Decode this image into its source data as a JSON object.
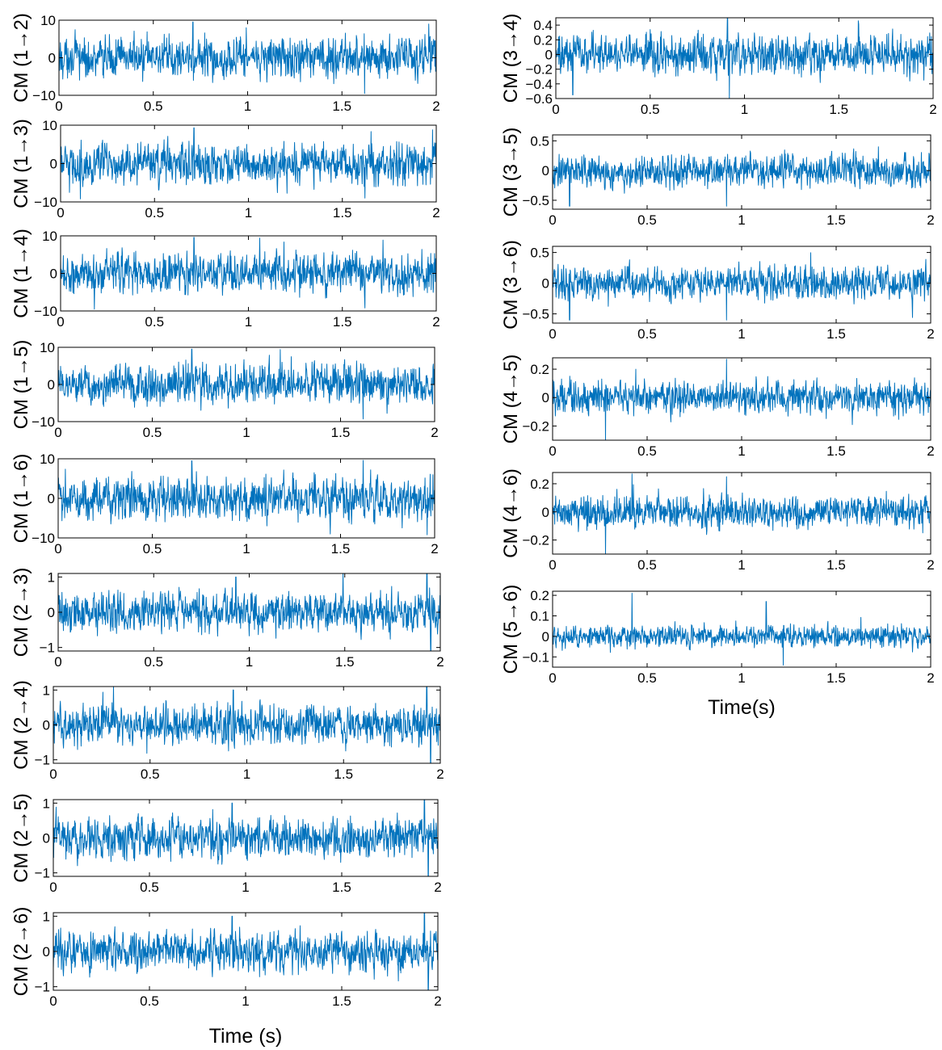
{
  "chart_data": [
    {
      "type": "line",
      "ylabel": "CM (1→2)",
      "xlim": [
        0,
        2
      ],
      "ylim": [
        -10,
        10
      ],
      "xticks": [
        "0",
        "0.5",
        "1",
        "1.5",
        "2"
      ],
      "yticks": [
        "10",
        "0",
        "−10"
      ],
      "ytick_values": [
        10,
        0,
        -10
      ],
      "series": [
        {
          "color": "#0072BD",
          "amplitude": 7,
          "spikes": [
            [
              0.71,
              9.5
            ],
            [
              1.62,
              -9.5
            ],
            [
              1.96,
              9
            ]
          ]
        }
      ]
    },
    {
      "type": "line",
      "ylabel": "CM (1→3)",
      "xlim": [
        0,
        2
      ],
      "ylim": [
        -10,
        10
      ],
      "xticks": [
        "0",
        "0.5",
        "1",
        "1.5",
        "2"
      ],
      "yticks": [
        "10",
        "0",
        "−10"
      ],
      "ytick_values": [
        10,
        0,
        -10
      ],
      "series": [
        {
          "color": "#0072BD",
          "amplitude": 7,
          "spikes": [
            [
              0.71,
              9.3
            ],
            [
              1.62,
              -9
            ],
            [
              1.98,
              8.8
            ]
          ]
        }
      ]
    },
    {
      "type": "line",
      "ylabel": "CM (1→4)",
      "xlim": [
        0,
        2
      ],
      "ylim": [
        -10,
        10
      ],
      "xticks": [
        "0",
        "0.5",
        "1",
        "1.5",
        "2"
      ],
      "yticks": [
        "10",
        "0",
        "−10"
      ],
      "ytick_values": [
        10,
        0,
        -10
      ],
      "series": [
        {
          "color": "#0072BD",
          "amplitude": 7,
          "spikes": [
            [
              0.71,
              9.6
            ],
            [
              1.06,
              9.4
            ],
            [
              1.62,
              -9.2
            ]
          ]
        }
      ]
    },
    {
      "type": "line",
      "ylabel": "CM (1→5)",
      "xlim": [
        0,
        2
      ],
      "ylim": [
        -10,
        10
      ],
      "xticks": [
        "0",
        "0.5",
        "1",
        "1.5",
        "2"
      ],
      "yticks": [
        "10",
        "0",
        "−10"
      ],
      "ytick_values": [
        10,
        0,
        -10
      ],
      "series": [
        {
          "color": "#0072BD",
          "amplitude": 7,
          "spikes": [
            [
              0.71,
              9.5
            ],
            [
              1.18,
              9.4
            ],
            [
              1.62,
              -9.3
            ]
          ]
        }
      ]
    },
    {
      "type": "line",
      "ylabel": "CM (1→6)",
      "xlim": [
        0,
        2
      ],
      "ylim": [
        -10,
        10
      ],
      "xticks": [
        "0",
        "0.5",
        "1",
        "1.5",
        "2"
      ],
      "yticks": [
        "10",
        "0",
        "−10"
      ],
      "ytick_values": [
        10,
        0,
        -10
      ],
      "series": [
        {
          "color": "#0072BD",
          "amplitude": 7,
          "spikes": [
            [
              0.71,
              9.5
            ],
            [
              1.62,
              9.6
            ],
            [
              1.96,
              -9.2
            ]
          ]
        }
      ]
    },
    {
      "type": "line",
      "ylabel": "CM (2→3)",
      "xlim": [
        0,
        2
      ],
      "ylim": [
        -1.1,
        1.1
      ],
      "xticks": [
        "0",
        "0.5",
        "1",
        "1.5",
        "2"
      ],
      "yticks": [
        "1",
        "0",
        "−1"
      ],
      "ytick_values": [
        1,
        0,
        -1
      ],
      "series": [
        {
          "color": "#0072BD",
          "amplitude": 0.75,
          "spikes": [
            [
              0.93,
              1.0
            ],
            [
              1.93,
              1.1
            ],
            [
              1.95,
              -1.1
            ]
          ]
        }
      ]
    },
    {
      "type": "line",
      "ylabel": "CM (2→4)",
      "xlim": [
        0,
        2
      ],
      "ylim": [
        -1.1,
        1.1
      ],
      "xticks": [
        "0",
        "0.5",
        "1",
        "1.5",
        "2"
      ],
      "yticks": [
        "1",
        "0",
        "−1"
      ],
      "ytick_values": [
        1,
        0,
        -1
      ],
      "series": [
        {
          "color": "#0072BD",
          "amplitude": 0.75,
          "spikes": [
            [
              0.93,
              1.0
            ],
            [
              1.93,
              1.1
            ],
            [
              1.95,
              -1.1
            ]
          ]
        }
      ]
    },
    {
      "type": "line",
      "ylabel": "CM (2→5)",
      "xlim": [
        0,
        2
      ],
      "ylim": [
        -1.1,
        1.1
      ],
      "xticks": [
        "0",
        "0.5",
        "1",
        "1.5",
        "2"
      ],
      "yticks": [
        "1",
        "0",
        "−1"
      ],
      "ytick_values": [
        1,
        0,
        -1
      ],
      "series": [
        {
          "color": "#0072BD",
          "amplitude": 0.75,
          "spikes": [
            [
              0.93,
              1.0
            ],
            [
              1.93,
              1.1
            ],
            [
              1.95,
              -1.1
            ]
          ]
        }
      ]
    },
    {
      "type": "line",
      "ylabel": "CM (2→6)",
      "xlim": [
        0,
        2
      ],
      "ylim": [
        -1.1,
        1.1
      ],
      "xticks": [
        "0",
        "0.5",
        "1",
        "1.5",
        "2"
      ],
      "yticks": [
        "1",
        "0",
        "−1"
      ],
      "ytick_values": [
        1,
        0,
        -1
      ],
      "series": [
        {
          "color": "#0072BD",
          "amplitude": 0.75,
          "spikes": [
            [
              0.93,
              1.0
            ],
            [
              1.93,
              1.1
            ],
            [
              1.95,
              -1.1
            ]
          ]
        }
      ]
    },
    {
      "type": "line",
      "ylabel": "CM (3→4)",
      "xlim": [
        0,
        2
      ],
      "ylim": [
        -0.6,
        0.5
      ],
      "xticks": [
        "0",
        "0.5",
        "1",
        "1.5",
        "2"
      ],
      "yticks": [
        "0.4",
        "0.2",
        "0",
        "−0.2",
        "−0.4",
        "−0.6"
      ],
      "ytick_values": [
        0.4,
        0.2,
        0,
        -0.2,
        -0.4,
        -0.6
      ],
      "series": [
        {
          "color": "#0072BD",
          "amplitude": 0.35,
          "spikes": [
            [
              0.91,
              0.5
            ],
            [
              0.92,
              -0.6
            ],
            [
              0.09,
              -0.55
            ]
          ]
        }
      ]
    },
    {
      "type": "line",
      "ylabel": "CM (3→5)",
      "xlim": [
        0,
        2
      ],
      "ylim": [
        -0.65,
        0.6
      ],
      "xticks": [
        "0",
        "0.5",
        "1",
        "1.5",
        "2"
      ],
      "yticks": [
        "0.5",
        "0",
        "−0.5"
      ],
      "ytick_values": [
        0.5,
        0,
        -0.5
      ],
      "series": [
        {
          "color": "#0072BD",
          "amplitude": 0.35,
          "spikes": [
            [
              0.92,
              0.55
            ],
            [
              0.92,
              -0.6
            ],
            [
              0.09,
              -0.6
            ]
          ]
        }
      ]
    },
    {
      "type": "line",
      "ylabel": "CM (3→6)",
      "xlim": [
        0,
        2
      ],
      "ylim": [
        -0.65,
        0.6
      ],
      "xticks": [
        "0",
        "0.5",
        "1",
        "1.5",
        "2"
      ],
      "yticks": [
        "0.5",
        "0",
        "−0.5"
      ],
      "ytick_values": [
        0.5,
        0,
        -0.5
      ],
      "series": [
        {
          "color": "#0072BD",
          "amplitude": 0.35,
          "spikes": [
            [
              0.92,
              0.55
            ],
            [
              0.92,
              -0.6
            ],
            [
              0.09,
              -0.6
            ]
          ]
        }
      ]
    },
    {
      "type": "line",
      "ylabel": "CM (4→5)",
      "xlim": [
        0,
        2
      ],
      "ylim": [
        -0.3,
        0.28
      ],
      "xticks": [
        "0",
        "0.5",
        "1",
        "1.5",
        "2"
      ],
      "yticks": [
        "0.2",
        "0",
        "−0.2"
      ],
      "ytick_values": [
        0.2,
        0,
        -0.2
      ],
      "series": [
        {
          "color": "#0072BD",
          "amplitude": 0.15,
          "spikes": [
            [
              0.28,
              -0.3
            ],
            [
              0.92,
              0.27
            ],
            [
              0.44,
              0.2
            ]
          ]
        }
      ]
    },
    {
      "type": "line",
      "ylabel": "CM (4→6)",
      "xlim": [
        0,
        2
      ],
      "ylim": [
        -0.3,
        0.28
      ],
      "xticks": [
        "0",
        "0.5",
        "1",
        "1.5",
        "2"
      ],
      "yticks": [
        "0.2",
        "0",
        "−0.2"
      ],
      "ytick_values": [
        0.2,
        0,
        -0.2
      ],
      "series": [
        {
          "color": "#0072BD",
          "amplitude": 0.15,
          "spikes": [
            [
              0.28,
              -0.3
            ],
            [
              0.92,
              0.25
            ],
            [
              0.42,
              0.27
            ]
          ]
        }
      ]
    },
    {
      "type": "line",
      "ylabel": "CM (5→6)",
      "xlim": [
        0,
        2
      ],
      "ylim": [
        -0.15,
        0.22
      ],
      "xticks": [
        "0",
        "0.5",
        "1",
        "1.5",
        "2"
      ],
      "yticks": [
        "0.2",
        "0.1",
        "0",
        "−0.1"
      ],
      "ytick_values": [
        0.2,
        0.1,
        0,
        -0.1
      ],
      "series": [
        {
          "color": "#0072BD",
          "amplitude": 0.07,
          "spikes": [
            [
              0.42,
              0.21
            ],
            [
              1.22,
              -0.14
            ],
            [
              1.13,
              0.17
            ]
          ]
        }
      ]
    }
  ],
  "left_xlabel": "Time (s)",
  "right_xlabel": "Time(s)"
}
